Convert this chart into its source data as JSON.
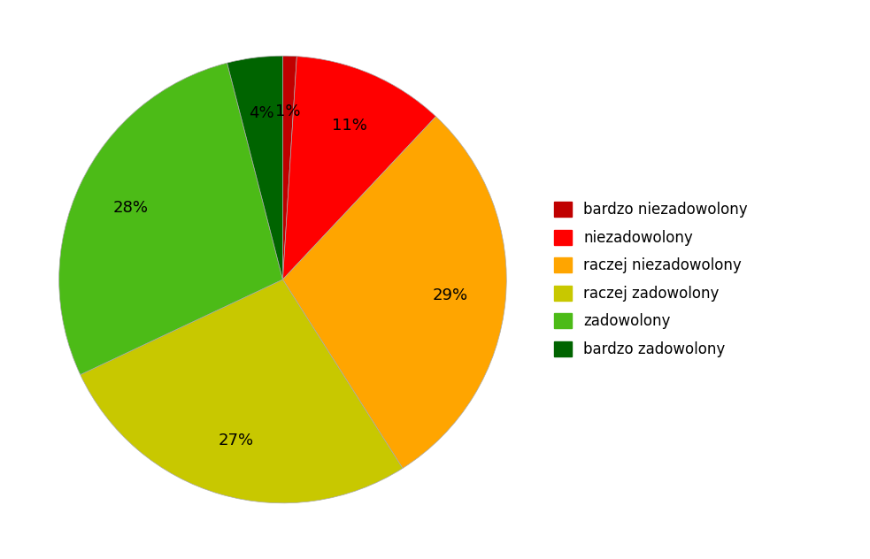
{
  "labels": [
    "bardzo niezadowolony",
    "niezadowolony",
    "raczej niezadowolony",
    "raczej zadowolony",
    "zadowolony",
    "bardzo zadowolony"
  ],
  "values": [
    1,
    11,
    29,
    27,
    28,
    4
  ],
  "colors": [
    "#C00000",
    "#FF0000",
    "#FFA500",
    "#C8C800",
    "#4CBB17",
    "#006400"
  ],
  "background_color": "#ffffff",
  "figsize": [
    9.83,
    6.32
  ],
  "dpi": 100,
  "legend_fontsize": 12,
  "pct_fontsize": 13
}
